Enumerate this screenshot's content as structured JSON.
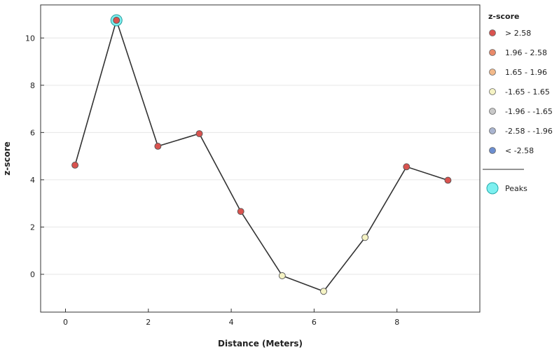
{
  "chart_data": {
    "type": "line",
    "xlabel": "Distance (Meters)",
    "ylabel": "z-score",
    "xlim": [
      -0.6,
      10.0
    ],
    "ylim": [
      -1.6,
      11.4
    ],
    "x_ticks": [
      0,
      2,
      4,
      6,
      8
    ],
    "y_ticks": [
      0,
      2,
      4,
      6,
      8,
      10
    ],
    "grid": "horizontal",
    "series": [
      {
        "x": [
          0.23,
          1.23,
          2.23,
          3.23,
          4.23,
          5.23,
          6.23,
          7.23,
          8.23,
          9.23
        ],
        "y": [
          4.62,
          10.75,
          5.42,
          5.95,
          2.66,
          -0.06,
          -0.72,
          1.56,
          4.55,
          3.98
        ],
        "point_category": [
          ">2.58",
          ">2.58",
          ">2.58",
          ">2.58",
          ">2.58",
          "mid",
          "mid",
          "mid",
          ">2.58",
          ">2.58"
        ]
      }
    ],
    "peaks": [
      {
        "x": 1.23,
        "y": 10.75
      }
    ],
    "legend": {
      "title": "z-score",
      "position": "right",
      "items": [
        {
          "label": "> 2.58",
          "color": "#d9534f"
        },
        {
          "label": "1.96 - 2.58",
          "color": "#e8896a"
        },
        {
          "label": "1.65 - 1.96",
          "color": "#f2b98a"
        },
        {
          "label": "-1.65 - 1.65",
          "color": "#f5f3c4"
        },
        {
          "label": "-1.96 - -1.65",
          "color": "#c8c8c8"
        },
        {
          "label": "-2.58 - -1.96",
          "color": "#a9b4cf"
        },
        {
          "label": "< -2.58",
          "color": "#6c8ed0"
        }
      ],
      "peaks_label": "Peaks",
      "peaks_color": "#7df0f0"
    },
    "line_color": "#333333",
    "point_colors": {
      ">2.58": "#d9534f",
      "mid": "#f5f3c4"
    }
  }
}
